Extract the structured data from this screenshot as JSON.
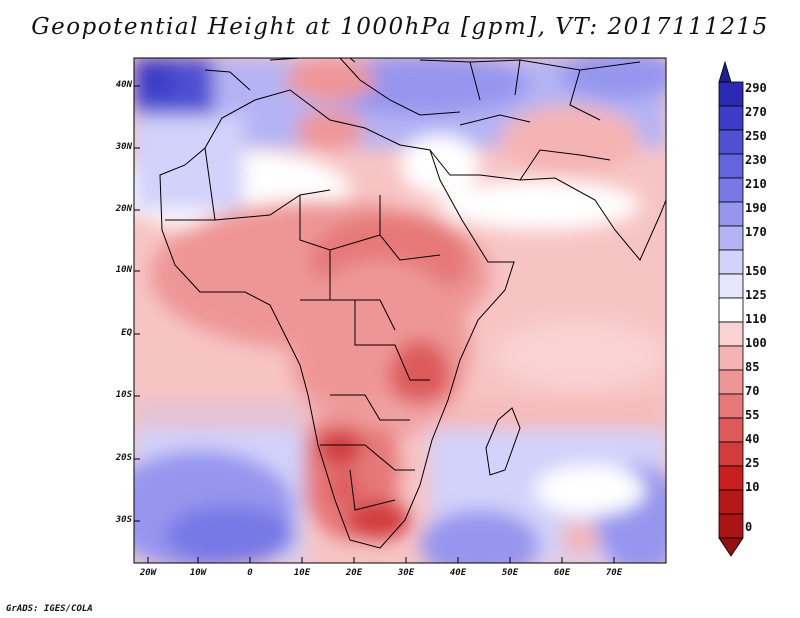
{
  "title": "Geopotential Height at 1000hPa [gpm], VT: 2017111215",
  "credit": "GrADS: IGES/COLA",
  "latitude_labels": [
    "40N",
    "30N",
    "20N",
    "10N",
    "EQ",
    "10S",
    "20S",
    "30S"
  ],
  "longitude_labels": [
    "20W",
    "10W",
    "0",
    "10E",
    "20E",
    "30E",
    "40E",
    "50E",
    "60E",
    "70E"
  ],
  "colorbar": {
    "levels": [
      "290",
      "270",
      "250",
      "230",
      "210",
      "190",
      "170",
      "150",
      "125",
      "110",
      "100",
      "85",
      "70",
      "55",
      "40",
      "25",
      "10",
      "0"
    ],
    "colors": [
      "#1e1e96",
      "#2a2ab4",
      "#3c3cc8",
      "#5050d2",
      "#6464dc",
      "#7878e6",
      "#9696ee",
      "#b4b4f4",
      "#d2d2fa",
      "#ffffff",
      "#fad2d2",
      "#f4b4b4",
      "#ee9696",
      "#e67878",
      "#dc5a5a",
      "#d23c3c",
      "#c81e1e",
      "#aa1414"
    ]
  },
  "chart_data": {
    "type": "heatmap",
    "title": "Geopotential Height at 1000hPa [gpm], VT: 2017111215",
    "variable": "Geopotential Height",
    "level": "1000hPa",
    "units": "gpm",
    "valid_time": "2017111215",
    "lon_range": [
      -23,
      80
    ],
    "lat_range": [
      -37,
      45
    ],
    "contour_levels": [
      0,
      10,
      25,
      40,
      55,
      70,
      85,
      100,
      110,
      125,
      150,
      170,
      190,
      210,
      230,
      250,
      270,
      290
    ]
  }
}
